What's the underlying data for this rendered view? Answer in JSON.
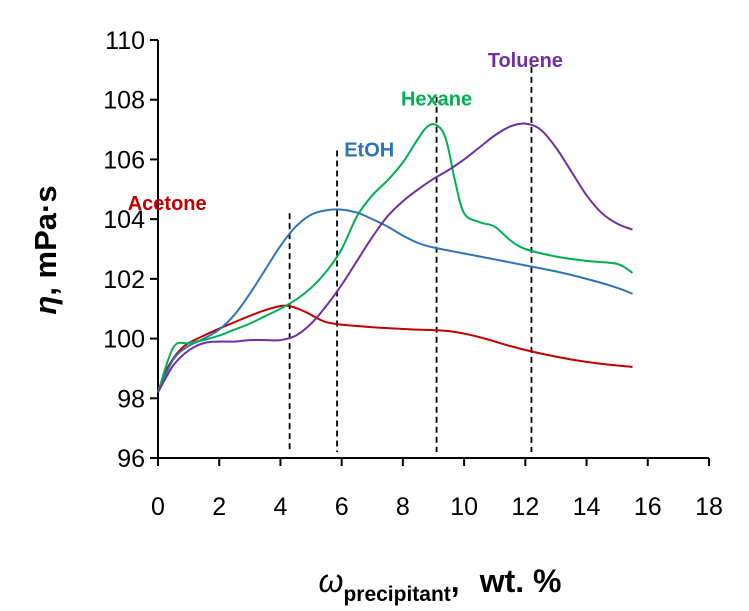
{
  "chart_data": {
    "type": "line",
    "title": "",
    "xlabel": {
      "symbol": "ω",
      "subscript": "precipitant",
      "sep": ",",
      "unit": "wt. %"
    },
    "ylabel": {
      "symbol": "η",
      "unit": ", mPa·s"
    },
    "xlim": [
      0,
      18
    ],
    "ylim": [
      96,
      110
    ],
    "xticks": [
      0,
      2,
      4,
      6,
      8,
      10,
      12,
      14,
      16,
      18
    ],
    "yticks": [
      96,
      98,
      100,
      102,
      104,
      106,
      108,
      110
    ],
    "grid": false,
    "series": [
      {
        "name": "Acetone",
        "color": "#c00000",
        "label_pos": [
          0.3,
          104.3
        ],
        "x": [
          0,
          0.3,
          0.8,
          1.5,
          2.5,
          3.5,
          4.2,
          4.8,
          5.5,
          6.5,
          8,
          9.5,
          10.5,
          11.5,
          12.5,
          13.5,
          14.5,
          15.5
        ],
        "y": [
          98.2,
          99.0,
          99.7,
          100.1,
          100.55,
          100.95,
          101.1,
          100.9,
          100.55,
          100.42,
          100.32,
          100.25,
          100.05,
          99.75,
          99.5,
          99.3,
          99.15,
          99.05
        ],
        "marker": {
          "x": 4.3,
          "y_top": 104.2,
          "y_bottom": 96.2
        }
      },
      {
        "name": "EtOH",
        "color": "#2e75b6",
        "label_pos": [
          6.9,
          106.1
        ],
        "x": [
          0,
          0.5,
          1,
          1.5,
          2,
          2.5,
          3,
          3.5,
          4,
          4.5,
          5,
          5.5,
          6,
          6.5,
          7,
          7.5,
          8,
          8.5,
          9,
          10,
          11,
          12,
          13,
          14,
          15,
          15.5
        ],
        "y": [
          98.2,
          99.3,
          99.75,
          100.0,
          100.3,
          100.8,
          101.5,
          102.3,
          103.1,
          103.75,
          104.15,
          104.3,
          104.32,
          104.22,
          104.0,
          103.75,
          103.45,
          103.2,
          103.05,
          102.85,
          102.65,
          102.45,
          102.25,
          102.0,
          101.7,
          101.5
        ],
        "marker": {
          "x": 5.85,
          "y_top": 106.3,
          "y_bottom": 96.2
        }
      },
      {
        "name": "Hexane",
        "color": "#00b050",
        "label_pos": [
          9.1,
          107.8
        ],
        "x": [
          0,
          0.5,
          1,
          1.5,
          2,
          2.5,
          3,
          3.5,
          4,
          4.5,
          5,
          5.5,
          6,
          6.5,
          7,
          7.5,
          8,
          8.5,
          8.8,
          9.1,
          9.4,
          9.7,
          10,
          10.5,
          11,
          11.5,
          12,
          13,
          14,
          15,
          15.5
        ],
        "y": [
          98.2,
          99.7,
          99.85,
          99.95,
          100.1,
          100.3,
          100.5,
          100.75,
          101.0,
          101.3,
          101.7,
          102.25,
          103.0,
          104.1,
          104.8,
          105.3,
          105.9,
          106.7,
          107.1,
          107.15,
          106.7,
          105.3,
          104.2,
          103.9,
          103.75,
          103.3,
          103.0,
          102.75,
          102.6,
          102.5,
          102.2
        ]
      },
      {
        "name": "Toluene",
        "color": "#7030a0",
        "label_pos": [
          12.0,
          109.1
        ],
        "x": [
          0,
          0.5,
          1,
          1.5,
          2,
          2.5,
          3,
          3.5,
          4,
          4.5,
          5,
          5.5,
          6,
          6.5,
          7,
          7.5,
          8,
          8.5,
          9,
          9.5,
          10,
          10.5,
          11,
          11.5,
          12,
          12.5,
          13,
          13.5,
          14,
          14.5,
          15,
          15.5
        ],
        "y": [
          98.2,
          99.1,
          99.6,
          99.85,
          99.9,
          99.9,
          99.95,
          99.95,
          99.95,
          100.1,
          100.5,
          101.1,
          101.8,
          102.6,
          103.4,
          104.1,
          104.6,
          105.0,
          105.35,
          105.65,
          106.0,
          106.4,
          106.8,
          107.1,
          107.2,
          107.0,
          106.4,
          105.6,
          104.8,
          104.2,
          103.85,
          103.65
        ],
        "marker": {
          "x": 12.2,
          "y_top": 109.1,
          "y_bottom": 96.2
        }
      }
    ],
    "hexane_marker": {
      "x": 9.1,
      "y_top": 108.1,
      "y_bottom": 96.2
    }
  }
}
